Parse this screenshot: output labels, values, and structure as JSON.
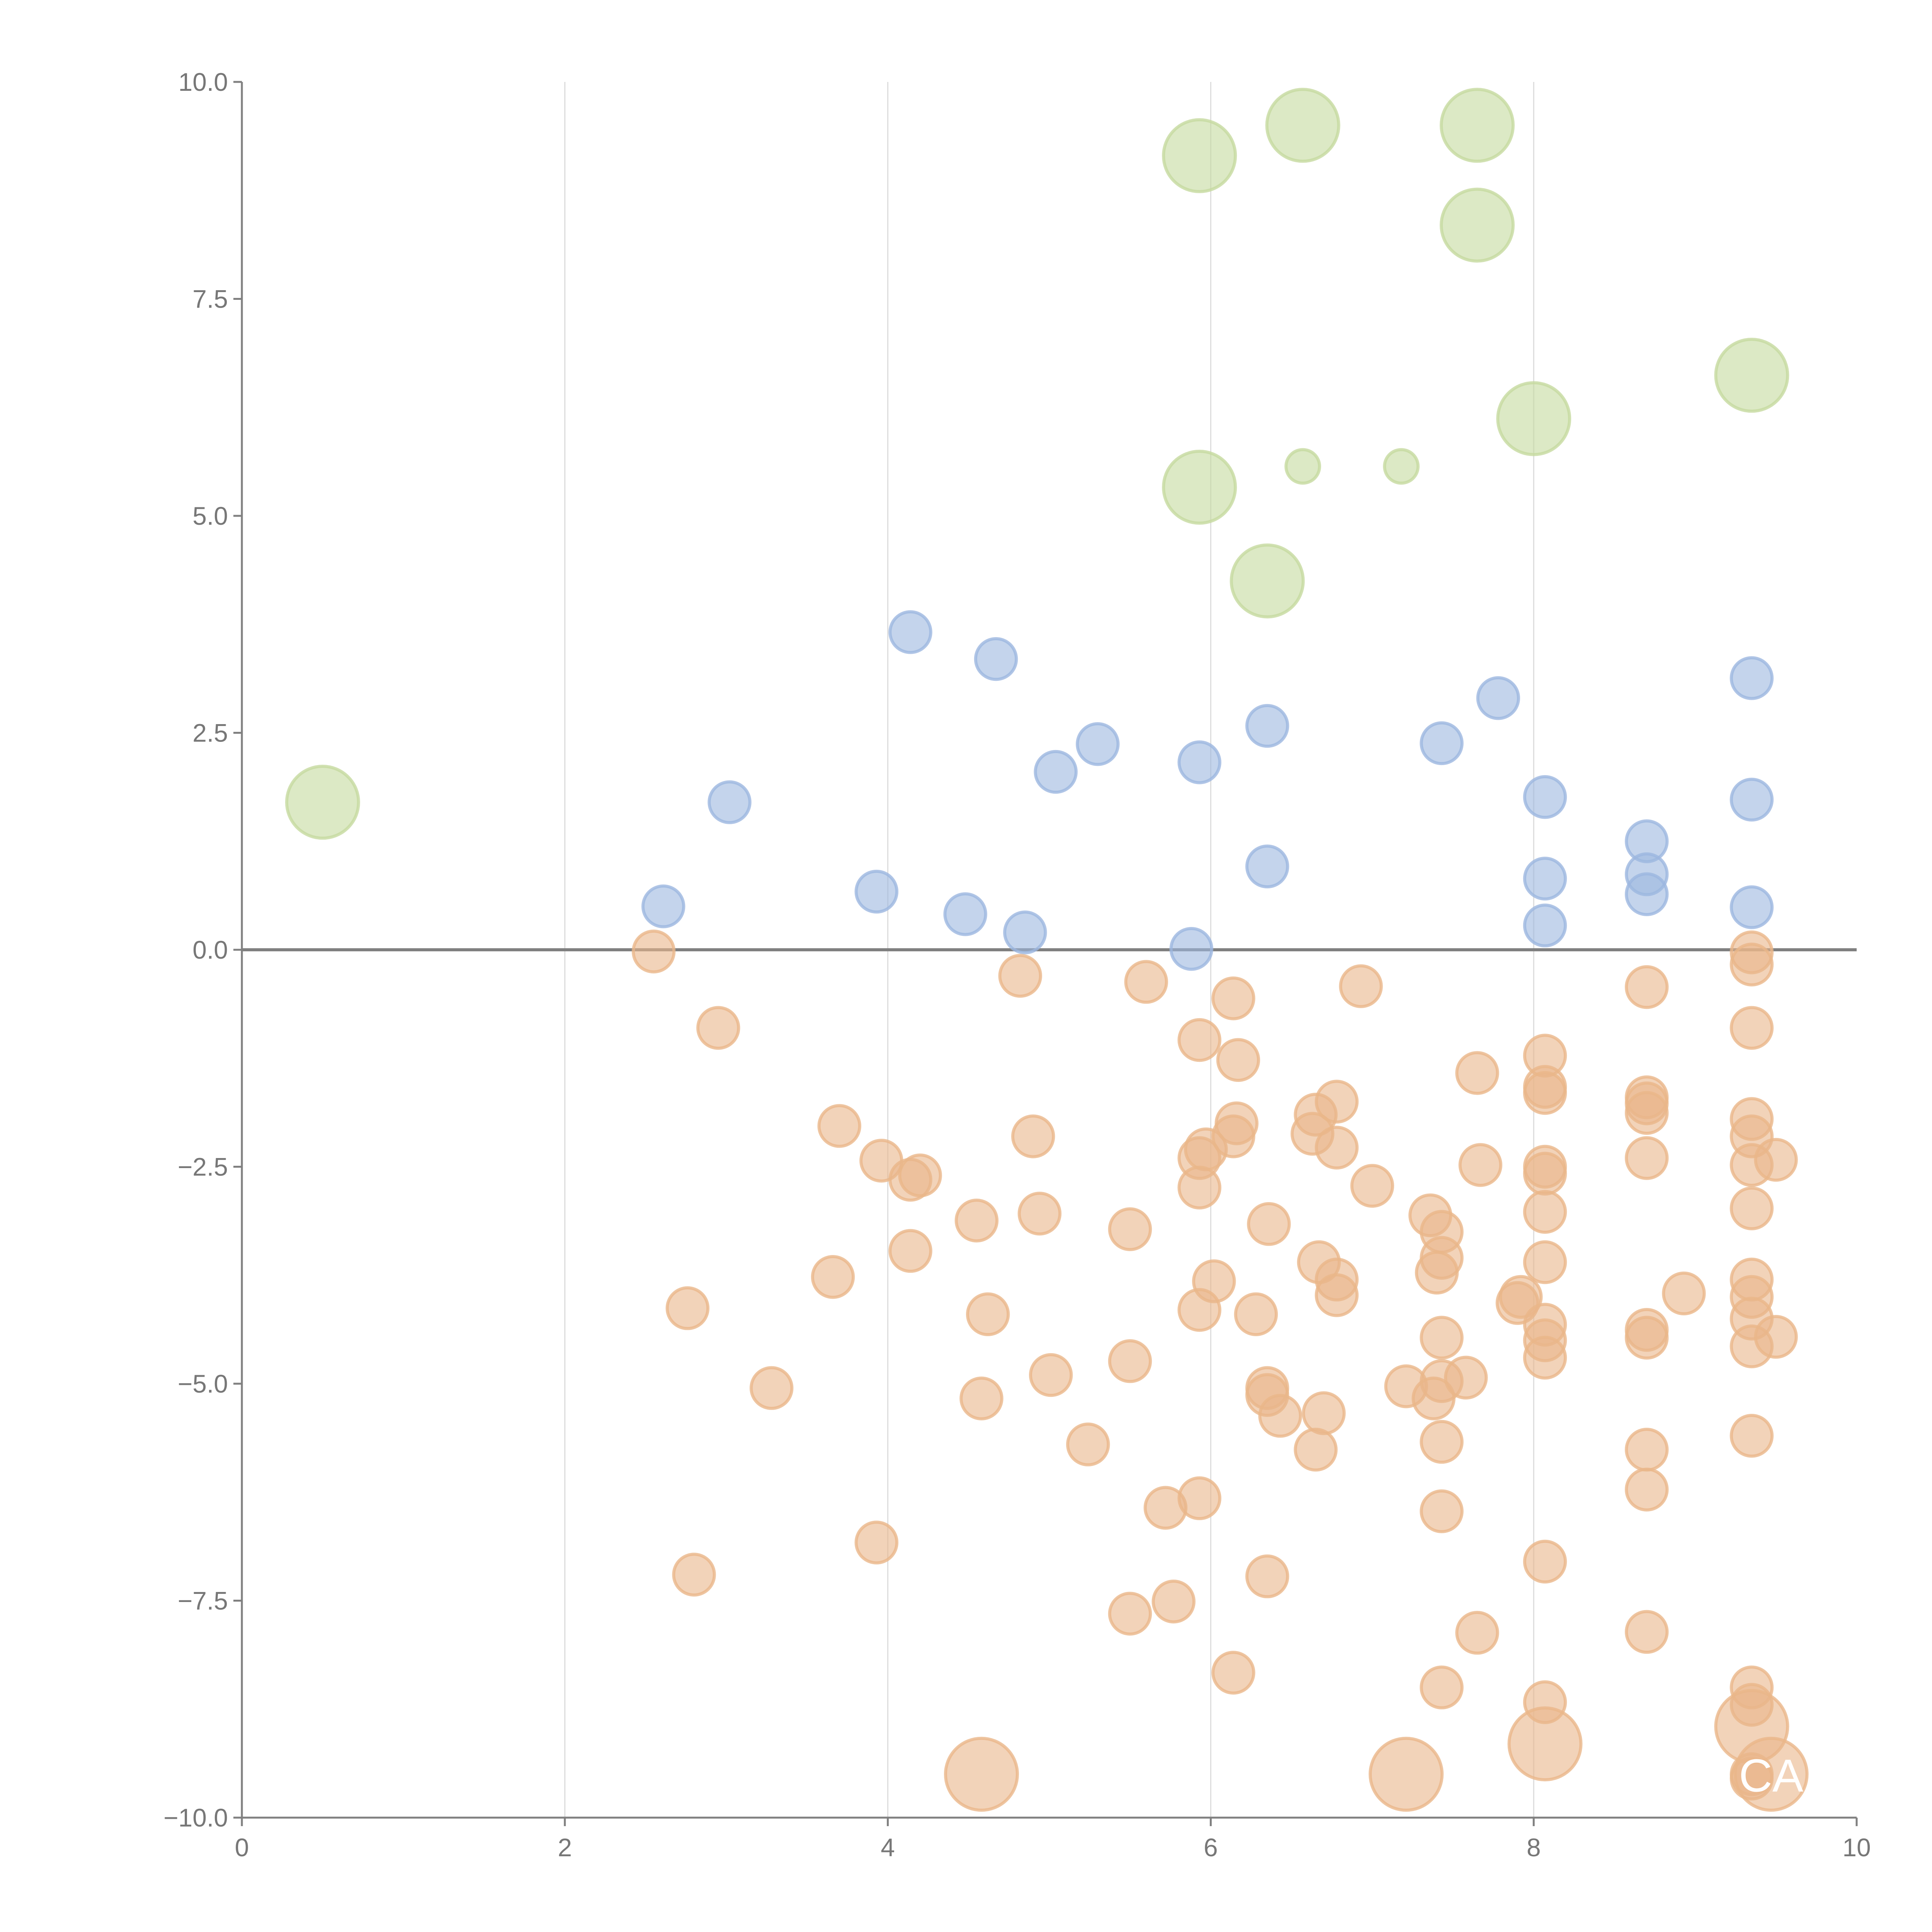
{
  "chart_data": {
    "type": "scatter",
    "title": "",
    "xlabel": "",
    "ylabel": "",
    "xlim": [
      0,
      10
    ],
    "ylim": [
      -10,
      10
    ],
    "xticks": [
      "0",
      "2",
      "4",
      "6",
      "8",
      "10"
    ],
    "yticks": [
      "10.0",
      "7.5",
      "5.0",
      "2.5",
      "0.0",
      "−2.5",
      "−5.0",
      "−7.5",
      "−10.0"
    ],
    "ytick_values": [
      10,
      7.5,
      5,
      2.5,
      0,
      -2.5,
      -5,
      -7.5,
      -10
    ],
    "xtick_values": [
      0,
      2,
      4,
      6,
      8,
      10
    ],
    "grid": "vertical",
    "legend": "none",
    "annotations": [
      {
        "text": "CA",
        "x": 9.47,
        "y": -9.5
      }
    ],
    "series": [
      {
        "name": "green",
        "color": "#c5da9f",
        "points": [
          [
            0.5,
            1.7,
            3
          ],
          [
            5.93,
            9.15,
            3
          ],
          [
            6.57,
            9.5,
            3
          ],
          [
            7.65,
            9.5,
            3
          ],
          [
            7.65,
            8.35,
            3
          ],
          [
            9.35,
            6.62,
            3
          ],
          [
            8.0,
            6.12,
            3
          ],
          [
            5.93,
            5.33,
            3
          ],
          [
            6.35,
            4.25,
            3
          ],
          [
            6.57,
            5.57,
            1.4
          ],
          [
            7.18,
            5.57,
            1.4
          ]
        ]
      },
      {
        "name": "blue",
        "color": "#9cb7e0",
        "points": [
          [
            4.14,
            3.66,
            1.7
          ],
          [
            4.67,
            3.35,
            1.7
          ],
          [
            5.3,
            2.37,
            1.7
          ],
          [
            5.04,
            2.05,
            1.7
          ],
          [
            5.93,
            2.16,
            1.7
          ],
          [
            6.35,
            2.58,
            1.7
          ],
          [
            7.43,
            2.38,
            1.7
          ],
          [
            7.78,
            2.9,
            1.7
          ],
          [
            9.35,
            3.13,
            1.7
          ],
          [
            3.02,
            1.7,
            1.7
          ],
          [
            8.07,
            1.76,
            1.7
          ],
          [
            9.35,
            1.73,
            1.7
          ],
          [
            8.7,
            1.25,
            1.7
          ],
          [
            8.7,
            0.87,
            1.7
          ],
          [
            8.7,
            0.64,
            1.7
          ],
          [
            8.07,
            0.82,
            1.7
          ],
          [
            8.07,
            0.28,
            1.7
          ],
          [
            9.35,
            0.49,
            1.7
          ],
          [
            6.35,
            0.96,
            1.7
          ],
          [
            2.61,
            0.5,
            1.7
          ],
          [
            3.93,
            0.67,
            1.7
          ],
          [
            4.48,
            0.41,
            1.7
          ],
          [
            4.85,
            0.2,
            1.7
          ],
          [
            5.88,
            0.01,
            1.7
          ]
        ]
      },
      {
        "name": "orange",
        "color": "#eab68a",
        "points": [
          [
            2.55,
            -0.02,
            1.7
          ],
          [
            2.95,
            -0.9,
            1.7
          ],
          [
            3.7,
            -2.03,
            1.7
          ],
          [
            3.96,
            -2.43,
            1.7
          ],
          [
            4.14,
            -2.65,
            1.7
          ],
          [
            4.2,
            -2.6,
            1.7
          ],
          [
            4.14,
            -3.47,
            1.7
          ],
          [
            3.66,
            -3.77,
            1.7
          ],
          [
            2.76,
            -4.13,
            1.7
          ],
          [
            3.28,
            -5.05,
            1.7
          ],
          [
            2.8,
            -7.2,
            1.7
          ],
          [
            3.93,
            -6.83,
            1.7
          ],
          [
            4.55,
            -3.12,
            1.7
          ],
          [
            4.62,
            -4.2,
            1.7
          ],
          [
            4.58,
            -5.17,
            1.7
          ],
          [
            4.82,
            -0.3,
            1.7
          ],
          [
            4.9,
            -2.15,
            1.7
          ],
          [
            4.94,
            -3.04,
            1.7
          ],
          [
            5.01,
            -4.9,
            1.7
          ],
          [
            5.24,
            -5.7,
            1.7
          ],
          [
            5.5,
            -3.22,
            1.7
          ],
          [
            5.5,
            -4.74,
            1.7
          ],
          [
            5.6,
            -0.37,
            1.7
          ],
          [
            5.5,
            -7.65,
            1.7
          ],
          [
            5.72,
            -6.43,
            1.7
          ],
          [
            5.77,
            -7.51,
            1.7
          ],
          [
            5.93,
            -1.04,
            1.7
          ],
          [
            5.93,
            -2.4,
            1.7
          ],
          [
            5.97,
            -2.3,
            1.7
          ],
          [
            5.93,
            -2.74,
            1.7
          ],
          [
            6.02,
            -3.82,
            1.7
          ],
          [
            5.93,
            -4.15,
            1.7
          ],
          [
            5.93,
            -6.32,
            1.7
          ],
          [
            6.14,
            -0.56,
            1.7
          ],
          [
            6.17,
            -1.27,
            1.7
          ],
          [
            6.16,
            -2.0,
            1.7
          ],
          [
            6.14,
            -2.15,
            1.7
          ],
          [
            6.36,
            -3.16,
            1.7
          ],
          [
            6.28,
            -4.2,
            1.7
          ],
          [
            6.35,
            -5.05,
            1.7
          ],
          [
            6.35,
            -5.13,
            1.7
          ],
          [
            6.43,
            -5.37,
            1.7
          ],
          [
            6.14,
            -8.33,
            1.7
          ],
          [
            6.35,
            -7.22,
            1.7
          ],
          [
            6.65,
            -1.9,
            1.7
          ],
          [
            6.63,
            -2.12,
            1.7
          ],
          [
            6.78,
            -1.75,
            1.7
          ],
          [
            6.78,
            -2.28,
            1.7
          ],
          [
            6.67,
            -3.6,
            1.7
          ],
          [
            6.78,
            -3.8,
            1.7
          ],
          [
            6.78,
            -3.98,
            1.7
          ],
          [
            6.7,
            -5.34,
            1.7
          ],
          [
            6.65,
            -5.76,
            1.7
          ],
          [
            6.93,
            -0.42,
            1.7
          ],
          [
            7.0,
            -2.72,
            1.7
          ],
          [
            7.21,
            -5.03,
            1.7
          ],
          [
            7.36,
            -3.06,
            1.7
          ],
          [
            7.43,
            -3.25,
            1.7
          ],
          [
            7.43,
            -3.55,
            1.7
          ],
          [
            7.4,
            -3.72,
            1.7
          ],
          [
            7.43,
            -4.47,
            1.7
          ],
          [
            7.43,
            -4.97,
            1.7
          ],
          [
            7.38,
            -5.17,
            1.7
          ],
          [
            7.58,
            -4.93,
            1.7
          ],
          [
            7.43,
            -5.67,
            1.7
          ],
          [
            7.43,
            -6.47,
            1.7
          ],
          [
            7.43,
            -8.5,
            1.7
          ],
          [
            7.65,
            -1.42,
            1.7
          ],
          [
            7.67,
            -2.48,
            1.7
          ],
          [
            7.65,
            -7.87,
            1.7
          ],
          [
            7.9,
            -4.07,
            1.7
          ],
          [
            7.92,
            -4.0,
            1.7
          ],
          [
            8.07,
            -1.22,
            1.7
          ],
          [
            8.07,
            -1.58,
            1.7
          ],
          [
            8.07,
            -1.65,
            1.7
          ],
          [
            8.07,
            -2.5,
            1.7
          ],
          [
            8.07,
            -2.58,
            1.7
          ],
          [
            8.07,
            -3.02,
            1.7
          ],
          [
            8.07,
            -3.6,
            1.7
          ],
          [
            8.07,
            -4.32,
            1.7
          ],
          [
            8.07,
            -4.5,
            1.7
          ],
          [
            8.07,
            -4.7,
            1.7
          ],
          [
            8.07,
            -7.05,
            1.7
          ],
          [
            8.07,
            -8.67,
            1.7
          ],
          [
            8.7,
            -0.43,
            1.7
          ],
          [
            8.7,
            -1.7,
            1.7
          ],
          [
            8.7,
            -1.77,
            1.7
          ],
          [
            8.7,
            -1.88,
            1.7
          ],
          [
            8.7,
            -2.4,
            1.7
          ],
          [
            8.7,
            -4.38,
            1.7
          ],
          [
            8.7,
            -4.47,
            1.7
          ],
          [
            8.7,
            -5.76,
            1.7
          ],
          [
            8.7,
            -6.22,
            1.7
          ],
          [
            8.7,
            -7.86,
            1.7
          ],
          [
            8.93,
            -3.96,
            1.7
          ],
          [
            9.35,
            -0.03,
            1.7
          ],
          [
            9.35,
            -0.17,
            1.7
          ],
          [
            9.35,
            -0.9,
            1.7
          ],
          [
            9.35,
            -1.95,
            1.7
          ],
          [
            9.35,
            -2.15,
            1.7
          ],
          [
            9.35,
            -2.48,
            1.7
          ],
          [
            9.5,
            -2.42,
            1.7
          ],
          [
            9.35,
            -2.98,
            1.7
          ],
          [
            9.35,
            -3.8,
            1.7
          ],
          [
            9.35,
            -4.0,
            1.7
          ],
          [
            9.35,
            -4.25,
            1.7
          ],
          [
            9.35,
            -4.57,
            1.7
          ],
          [
            9.5,
            -4.46,
            1.7
          ],
          [
            9.35,
            -5.6,
            1.7
          ],
          [
            9.35,
            -8.5,
            1.7
          ],
          [
            9.35,
            -8.7,
            1.7
          ],
          [
            9.35,
            -9.5,
            1.7
          ],
          [
            9.35,
            -9.55,
            1.7
          ],
          [
            4.58,
            -9.5,
            3
          ],
          [
            7.21,
            -9.5,
            3
          ],
          [
            8.07,
            -9.15,
            3
          ],
          [
            9.35,
            -8.95,
            3
          ],
          [
            9.47,
            -9.5,
            3
          ]
        ]
      }
    ]
  }
}
